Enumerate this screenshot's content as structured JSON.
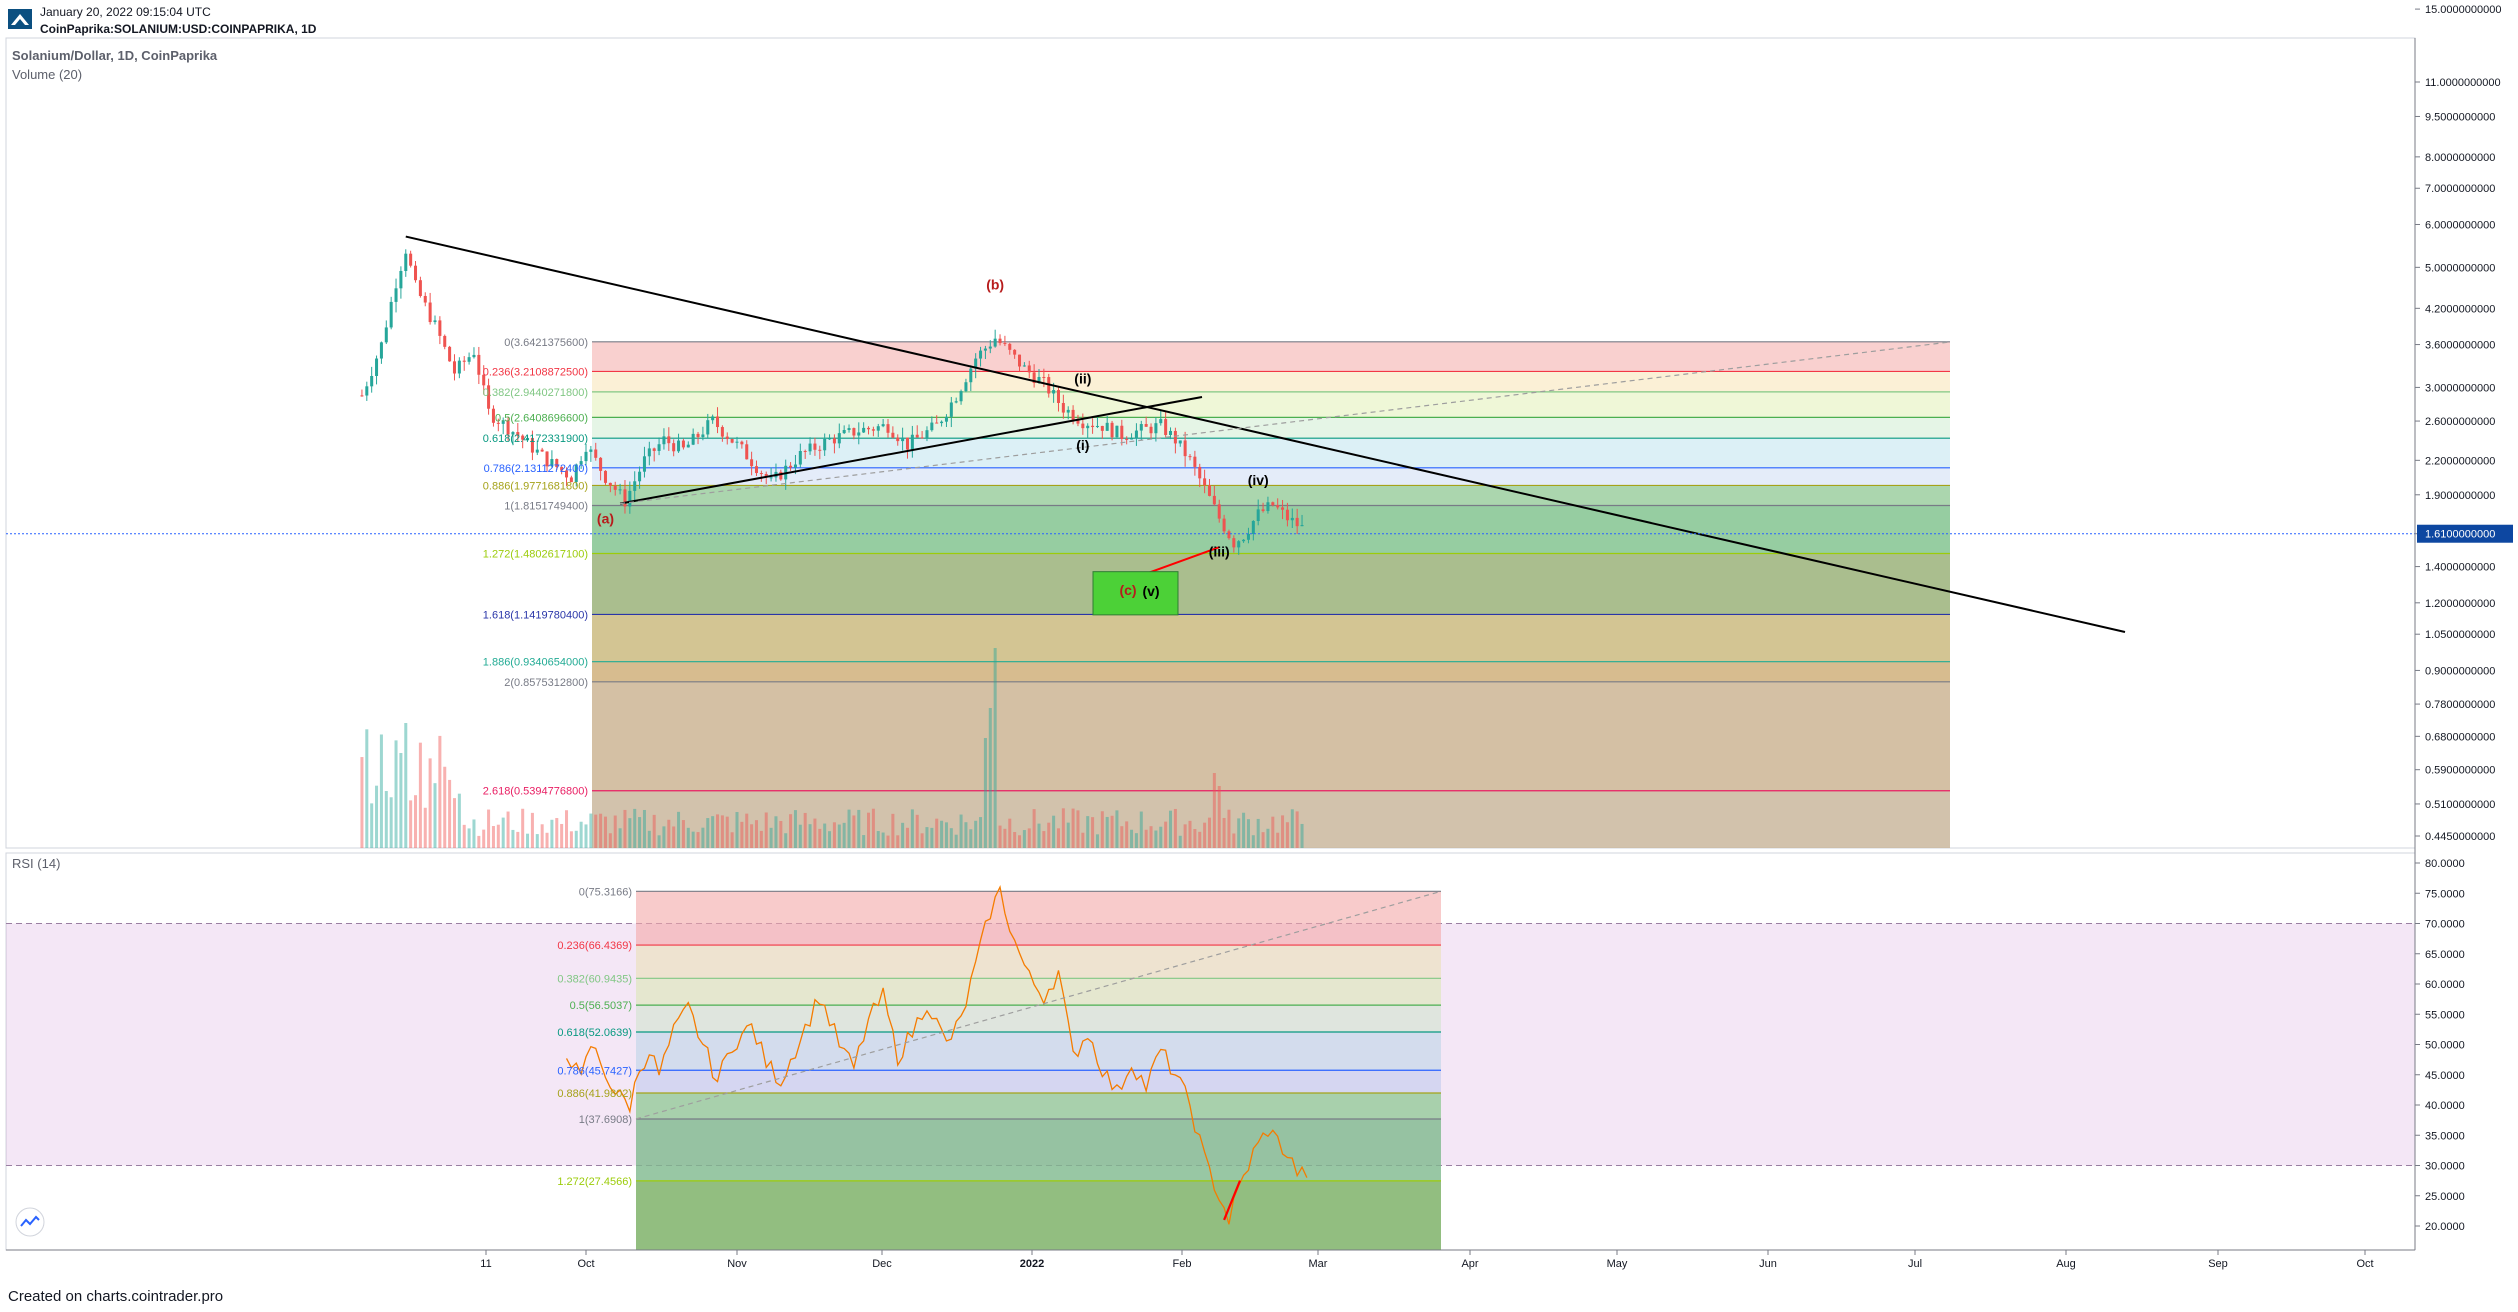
{
  "header": {
    "date": "January 20, 2022 09:15:04 UTC",
    "symbol": "CoinPaprika:SOLANIUM:USD:COINPAPRIKA, 1D"
  },
  "footer": {
    "created": "Created on charts.cointrader.pro"
  },
  "colors": {
    "up": "#26a69a",
    "down": "#ef5350",
    "rsi_line": "#f57c00",
    "trendline": "#000000",
    "divergence": "#ff0000",
    "current_price_bg": "#0d47a1"
  },
  "chart_data": [
    {
      "type": "candlestick",
      "title": "Solanium/Dollar, 1D, CoinPaprika",
      "indicator_label": "Volume (20)",
      "y_scale": "log",
      "price_ticks": [
        "15.0000000000",
        "11.0000000000",
        "9.5000000000",
        "8.0000000000",
        "7.0000000000",
        "6.0000000000",
        "5.0000000000",
        "4.2000000000",
        "3.6000000000",
        "3.0000000000",
        "2.6000000000",
        "2.2000000000",
        "1.9000000000",
        "1.6100000000",
        "1.4000000000",
        "1.2000000000",
        "1.0500000000",
        "0.9000000000",
        "0.7800000000",
        "0.6800000000",
        "0.5900000000",
        "0.5100000000",
        "0.4450000000"
      ],
      "current_price": "1.6100000000",
      "time_axis": [
        "11",
        "Oct",
        "Nov",
        "Dec",
        "2022",
        "Feb",
        "Mar",
        "Apr",
        "May",
        "Jun",
        "Jul",
        "Aug",
        "Sep",
        "Oct"
      ],
      "fib_levels": [
        {
          "label": "0(3.6421375600)",
          "value": 3.64213756,
          "color": "#787b86"
        },
        {
          "label": "0.236(3.2108872500)",
          "value": 3.21088725,
          "color": "#f23645"
        },
        {
          "label": "0.382(2.9440271800)",
          "value": 2.94402718,
          "color": "#81c784"
        },
        {
          "label": "0.5(2.6408696600)",
          "value": 2.64086966,
          "color": "#4caf50"
        },
        {
          "label": "0.618(2.4172331900)",
          "value": 2.41723319,
          "color": "#089981"
        },
        {
          "label": "0.786(2.1311272400)",
          "value": 2.13112724,
          "color": "#2962ff"
        },
        {
          "label": "0.886(1.9771681800)",
          "value": 1.97716818,
          "color": "#a5a21a"
        },
        {
          "label": "1(1.8151749400)",
          "value": 1.81517494,
          "color": "#787b86"
        },
        {
          "label": "1.272(1.4802617100)",
          "value": 1.48026171,
          "color": "#9ccc0a"
        },
        {
          "label": "1.618(1.1419780400)",
          "value": 1.14197804,
          "color": "#2935a8"
        },
        {
          "label": "1.886(0.9340654000)",
          "value": 0.9340654,
          "color": "#22ab94"
        },
        {
          "label": "2(0.8575312800)",
          "value": 0.85753128,
          "color": "#787b86"
        },
        {
          "label": "2.618(0.5394776800)",
          "value": 0.53947768,
          "color": "#e91e63"
        }
      ],
      "wave_labels": [
        {
          "text": "(a)",
          "color": "#b71c1c"
        },
        {
          "text": "(b)",
          "color": "#b71c1c"
        },
        {
          "text": "(i)",
          "color": "#000000"
        },
        {
          "text": "(ii)",
          "color": "#000000"
        },
        {
          "text": "(iii)",
          "color": "#000000"
        },
        {
          "text": "(iv)",
          "color": "#000000"
        },
        {
          "text": "(c)",
          "color": "#b71c1c"
        },
        {
          "text": "(v)",
          "color": "#000000"
        }
      ],
      "target_box_color": "#4cd137"
    },
    {
      "type": "line",
      "title": "RSI (14)",
      "rsi_ticks": [
        "80.0000",
        "75.0000",
        "70.0000",
        "65.0000",
        "60.0000",
        "55.0000",
        "50.0000",
        "45.0000",
        "40.0000",
        "35.0000",
        "30.0000",
        "25.0000",
        "20.0000"
      ],
      "overbought": 70,
      "oversold": 30,
      "fib_levels": [
        {
          "label": "0(75.3166)",
          "value": 75.3166,
          "color": "#787b86"
        },
        {
          "label": "0.236(66.4369)",
          "value": 66.4369,
          "color": "#f23645"
        },
        {
          "label": "0.382(60.9435)",
          "value": 60.9435,
          "color": "#81c784"
        },
        {
          "label": "0.5(56.5037)",
          "value": 56.5037,
          "color": "#4caf50"
        },
        {
          "label": "0.618(52.0639)",
          "value": 52.0639,
          "color": "#089981"
        },
        {
          "label": "0.786(45.7427)",
          "value": 45.7427,
          "color": "#2962ff"
        },
        {
          "label": "0.886(41.9802)",
          "value": 41.9802,
          "color": "#a5a21a"
        },
        {
          "label": "1(37.6908)",
          "value": 37.6908,
          "color": "#787b86"
        },
        {
          "label": "1.272(27.4566)",
          "value": 27.4566,
          "color": "#9ccc0a"
        }
      ]
    }
  ]
}
